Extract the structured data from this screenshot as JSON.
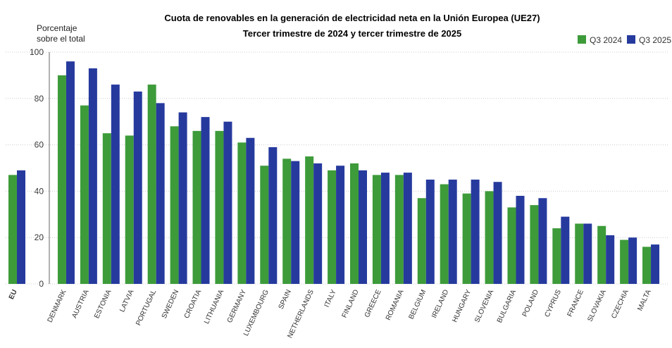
{
  "chart_data": {
    "type": "bar",
    "title": "Cuota de renovables en la generación de electricidad neta en la Unión Europea (UE27)",
    "subtitle": "Tercer trimestre de 2024 y tercer trimestre de 2025",
    "ylabel": "Porcentaje sobre el total",
    "categories": [
      "EU",
      "DENMARK",
      "AUSTRIA",
      "ESTONIA",
      "LATVIA",
      "PORTUGAL",
      "SWEDEN",
      "CROATIA",
      "LITHUANIA",
      "GERMANY",
      "LUXEMBOURG",
      "SPAIN",
      "NETHERLANDS",
      "ITALY",
      "FINLAND",
      "GREECE",
      "ROMANIA",
      "BELGIUM",
      "IRELAND",
      "HUNGARY",
      "SLOVENIA",
      "BULGARIA",
      "POLAND",
      "CYPRUS",
      "FRANCE",
      "SLOVAKIA",
      "CZECHIA",
      "MALTA"
    ],
    "series": [
      {
        "name": "Q3 2024",
        "color": "#3d9b3a",
        "values": [
          47,
          90,
          77,
          65,
          64,
          86,
          68,
          66,
          66,
          61,
          51,
          54,
          55,
          49,
          52,
          47,
          47,
          37,
          43,
          39,
          40,
          33,
          34,
          24,
          26,
          25,
          19,
          16
        ]
      },
      {
        "name": "Q3 2025",
        "color": "#263a9e",
        "values": [
          49,
          96,
          93,
          86,
          83,
          78,
          74,
          72,
          70,
          63,
          59,
          53,
          52,
          51,
          49,
          48,
          48,
          45,
          45,
          45,
          44,
          38,
          37,
          29,
          26,
          21,
          20,
          17
        ]
      }
    ],
    "ylim": [
      0,
      100
    ],
    "yticks": [
      0,
      20,
      40,
      60,
      80,
      100
    ],
    "grid": true,
    "legend": "top-right"
  }
}
